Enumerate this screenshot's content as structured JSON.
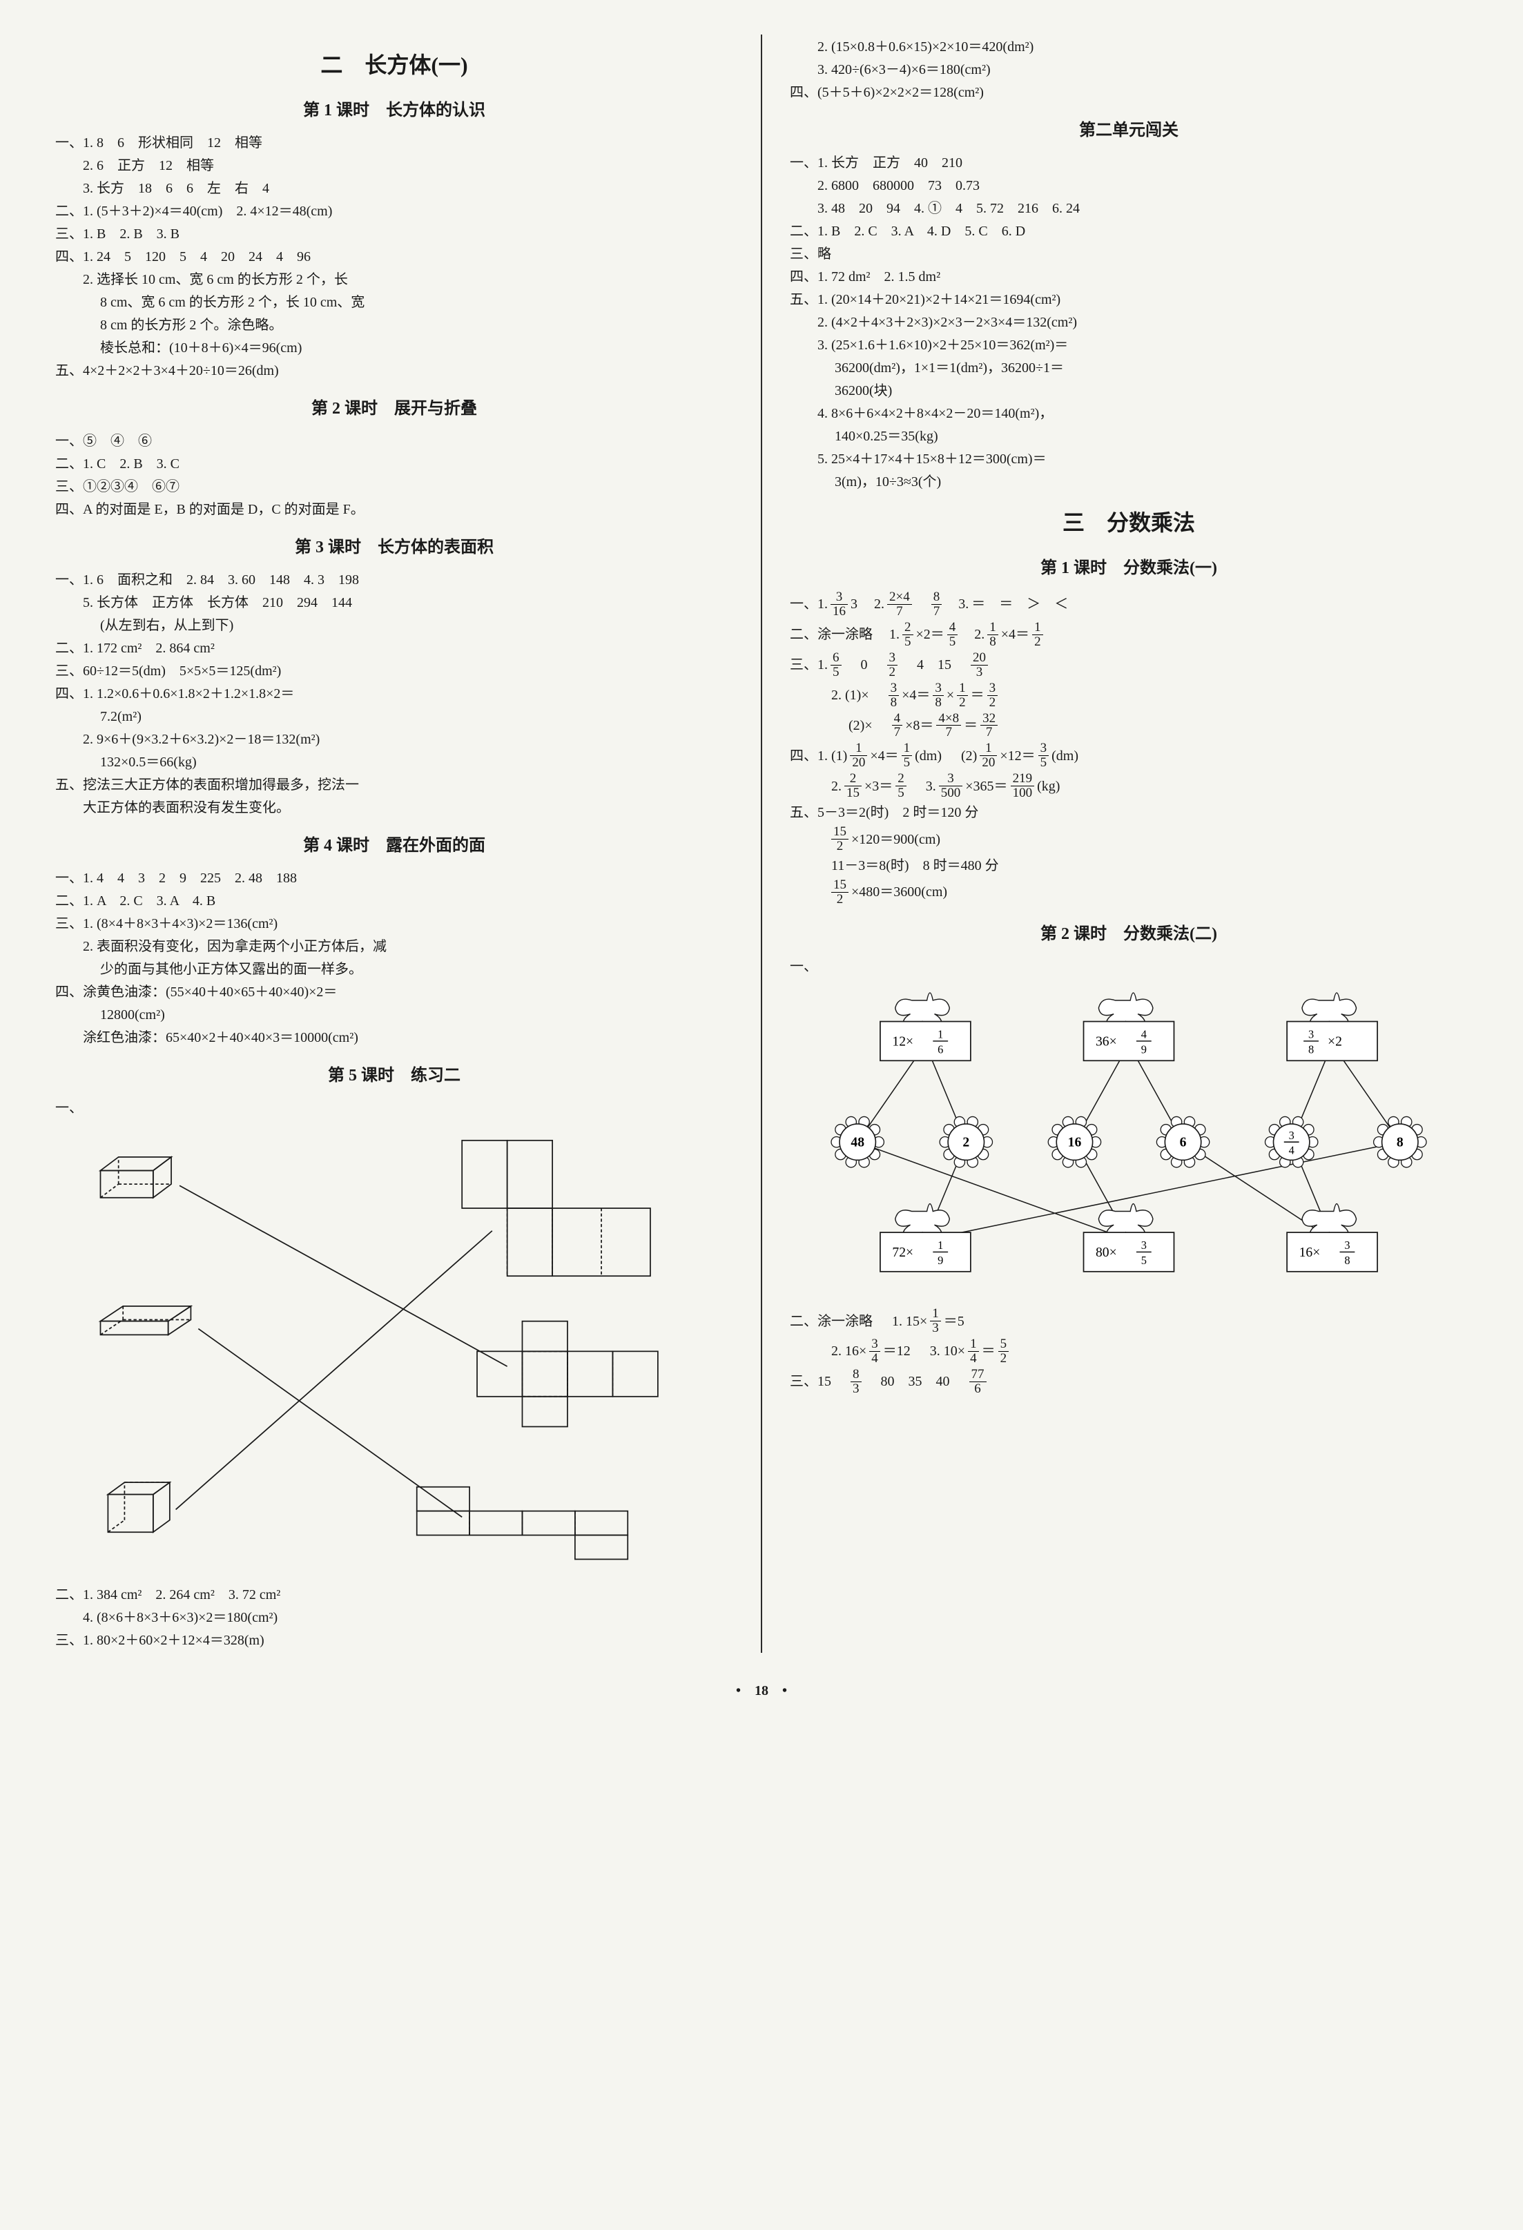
{
  "pageNumber": "18",
  "left": {
    "chapter": "二　长方体(一)",
    "lessons": [
      {
        "title": "第 1 课时　长方体的认识",
        "lines": [
          "一、1. 8　6　形状相同　12　相等",
          "　　2. 6　正方　12　相等",
          "　　3. 长方　18　6　6　左　右　4",
          "二、1. (5＋3＋2)×4＝40(cm)　2. 4×12＝48(cm)",
          "三、1. B　2. B　3. B",
          "四、1. 24　5　120　5　4　20　24　4　96",
          "　　2. 选择长 10 cm、宽 6 cm 的长方形 2 个，长",
          "　　　 8 cm、宽 6 cm 的长方形 2 个，长 10 cm、宽",
          "　　　 8 cm 的长方形 2 个。涂色略。",
          "　　　 棱长总和：(10＋8＋6)×4＝96(cm)",
          "五、4×2＋2×2＋3×4＋20÷10＝26(dm)"
        ]
      },
      {
        "title": "第 2 课时　展开与折叠",
        "lines": [
          "一、⑤　④　⑥",
          "二、1. C　2. B　3. C",
          "三、①②③④　⑥⑦",
          "四、A 的对面是 E，B 的对面是 D，C 的对面是 F。"
        ]
      },
      {
        "title": "第 3 课时　长方体的表面积",
        "lines": [
          "一、1. 6　面积之和　2. 84　3. 60　148　4. 3　198",
          "　　5. 长方体　正方体　长方体　210　294　144",
          "　　　 (从左到右，从上到下)",
          "二、1. 172 cm²　2. 864 cm²",
          "三、60÷12＝5(dm)　5×5×5＝125(dm²)",
          "四、1. 1.2×0.6＋0.6×1.8×2＋1.2×1.8×2＝",
          "　　　 7.2(m²)",
          "　　2. 9×6＋(9×3.2＋6×3.2)×2－18＝132(m²)",
          "　　　 132×0.5＝66(kg)",
          "五、挖法三大正方体的表面积增加得最多，挖法一",
          "　　大正方体的表面积没有发生变化。"
        ]
      },
      {
        "title": "第 4 课时　露在外面的面",
        "lines": [
          "一、1. 4　4　3　2　9　225　2. 48　188",
          "二、1. A　2. C　3. A　4. B",
          "三、1. (8×4＋8×3＋4×3)×2＝136(cm²)",
          "　　2. 表面积没有变化，因为拿走两个小正方体后，减",
          "　　　 少的面与其他小正方体又露出的面一样多。",
          "四、涂黄色油漆：(55×40＋40×65＋40×40)×2＝",
          "　　　 12800(cm²)",
          "　　涂红色油漆：65×40×2＋40×40×3＝10000(cm²)"
        ]
      },
      {
        "title": "第 5 课时　练习二",
        "diagram": true,
        "linesAfter": [
          "二、1. 384 cm²　2. 264 cm²　3. 72 cm²",
          "　　4. (8×6＋8×3＋6×3)×2＝180(cm²)",
          "三、1. 80×2＋60×2＋12×4＝328(m)"
        ]
      }
    ]
  },
  "right": {
    "topLines": [
      "　　2. (15×0.8＋0.6×15)×2×10＝420(dm²)",
      "　　3. 420÷(6×3－4)×6＝180(cm²)",
      "四、(5＋5＋6)×2×2×2＝128(cm²)"
    ],
    "unit2Title": "第二单元闯关",
    "unit2Lines": [
      "一、1. 长方　正方　40　210",
      "　　2. 6800　680000　73　0.73",
      "　　3. 48　20　94　4. ①　4　5. 72　216　6. 24",
      "二、1. B　2. C　3. A　4. D　5. C　6. D",
      "三、略",
      "四、1. 72 dm²　2. 1.5 dm²",
      "五、1. (20×14＋20×21)×2＋14×21＝1694(cm²)",
      "　　2. (4×2＋4×3＋2×3)×2×3－2×3×4＝132(cm²)",
      "　　3. (25×1.6＋1.6×10)×2＋25×10＝362(m²)＝",
      "　　　 36200(dm²)，1×1＝1(dm²)，36200÷1＝",
      "　　　 36200(块)",
      "　　4. 8×6＋6×4×2＋8×4×2－20＝140(m²)，",
      "　　　 140×0.25＝35(kg)",
      "　　5. 25×4＋17×4＋15×8＋12＝300(cm)＝",
      "　　　 3(m)，10÷3≈3(个)"
    ],
    "chapter": "三　分数乘法",
    "lesson1": {
      "title": "第 1 课时　分数乘法(一)",
      "items": {
        "a1_1": {
          "f1n": "3",
          "f1d": "16",
          "t1": "3",
          "f2n": "2×4",
          "f2d": "7",
          "f3n": "8",
          "f3d": "7",
          "t3": "＝　＝　＞　＜"
        },
        "a2": {
          "label": "二、涂一涂略",
          "p1": {
            "f1n": "2",
            "f1d": "5",
            "m": "×2＝",
            "f2n": "4",
            "f2d": "5"
          },
          "p2": {
            "f1n": "1",
            "f1d": "8",
            "m": "×4＝",
            "f2n": "1",
            "f2d": "2"
          }
        },
        "a3_1": {
          "f1n": "6",
          "f1d": "5",
          "t": "0",
          "f2n": "3",
          "f2d": "2",
          "t2": "4　15",
          "f3n": "20",
          "f3d": "3"
        },
        "a3_2_1": {
          "label": "2. (1)×",
          "f1n": "3",
          "f1d": "8",
          "m": "×4＝",
          "f2n": "3",
          "f2d": "8",
          "mid": "×",
          "f3n": "1",
          "f3d": "2",
          "eq": "＝",
          "f4n": "3",
          "f4d": "2"
        },
        "a3_2_2": {
          "label": "　 (2)×",
          "f1n": "4",
          "f1d": "7",
          "m": "×8＝",
          "f2n": "4×8",
          "f2d": "7",
          "eq": "＝",
          "f3n": "32",
          "f3d": "7"
        },
        "a4_1": {
          "label": "四、1. (1)",
          "f1n": "1",
          "f1d": "20",
          "m": "×4＝",
          "f2n": "1",
          "f2d": "5",
          "u": "(dm)",
          "label2": "(2)",
          "f3n": "1",
          "f3d": "20",
          "m2": "×12＝",
          "f4n": "3",
          "f4d": "5",
          "u2": "(dm)"
        },
        "a4_2": {
          "label": "2.",
          "f1n": "2",
          "f1d": "15",
          "m": "×3＝",
          "f2n": "2",
          "f2d": "5",
          "label2": "3.",
          "f3n": "3",
          "f3d": "500",
          "m2": "×365＝",
          "f4n": "219",
          "f4d": "100",
          "u": "(kg)"
        },
        "a5": {
          "l1": "五、5－3＝2(时)　2 时＝120 分",
          "f1n": "15",
          "f1d": "2",
          "m1": "×120＝900(cm)",
          "l3": "11－3＝8(时)　8 时＝480 分",
          "f2n": "15",
          "f2d": "2",
          "m2": "×480＝3600(cm)"
        }
      }
    },
    "lesson2": {
      "title": "第 2 课时　分数乘法(二)",
      "diagram": {
        "top": [
          {
            "text": "12×",
            "fn": "1",
            "fd": "6"
          },
          {
            "text": "36×",
            "fn": "4",
            "fd": "9"
          },
          {
            "fn": "3",
            "fd": "8",
            "text": "×2"
          }
        ],
        "middle": [
          "48",
          "2",
          "16",
          "6",
          "3/4",
          "8"
        ],
        "bottom": [
          {
            "text": "72×",
            "fn": "1",
            "fd": "9"
          },
          {
            "text": "80×",
            "fn": "3",
            "fd": "5"
          },
          {
            "text": "16×",
            "fn": "3",
            "fd": "8"
          }
        ]
      },
      "lines": {
        "b2": {
          "label": "二、涂一涂略",
          "p1": {
            "t": "1. 15×",
            "fn": "1",
            "fd": "3",
            "eq": "＝5"
          }
        },
        "b2_2": {
          "p2": {
            "t": "2. 16×",
            "fn": "3",
            "fd": "4",
            "eq": "＝12"
          },
          "p3": {
            "t": "3. 10×",
            "fn": "1",
            "fd": "4",
            "eq": "＝",
            "f2n": "5",
            "f2d": "2"
          }
        },
        "b3": {
          "label": "三、15",
          "f1n": "8",
          "f1d": "3",
          "t": "80　35　40",
          "f2n": "77",
          "f2d": "6"
        }
      }
    }
  },
  "diagrams": {
    "nets": {
      "label": "一、",
      "stroke": "#1a1a1a",
      "dash": "4 3",
      "lineW": 1.6
    }
  }
}
